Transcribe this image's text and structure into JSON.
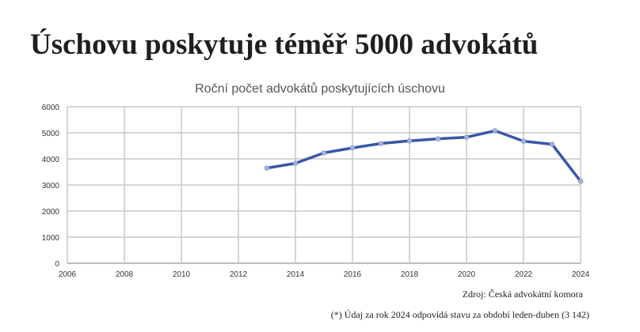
{
  "headline": "Úschovu poskytuje téměř 5000 advokátů",
  "source": "Zdroj: Česká advokátní komora",
  "footnote": "(*) Údaj za rok 2024 odpovídá stavu za období leden-duben (3 142)",
  "chart_data": {
    "type": "line",
    "title": "Roční počet advokátů poskytujících úschovu",
    "xlabel": "",
    "ylabel": "",
    "xlim": [
      2006,
      2024
    ],
    "ylim": [
      0,
      6000
    ],
    "x_ticks": [
      2006,
      2008,
      2010,
      2012,
      2014,
      2016,
      2018,
      2020,
      2022,
      2024
    ],
    "y_ticks": [
      0,
      1000,
      2000,
      3000,
      4000,
      5000,
      6000
    ],
    "grid": true,
    "series_color": "#3a56a8",
    "series": [
      {
        "x": [
          2013,
          2014,
          2015,
          2016,
          2017,
          2018,
          2019,
          2020,
          2021,
          2022,
          2023,
          2024
        ],
        "values": [
          3650,
          3830,
          4230,
          4420,
          4590,
          4690,
          4770,
          4830,
          5080,
          4680,
          4560,
          3142
        ]
      }
    ]
  }
}
